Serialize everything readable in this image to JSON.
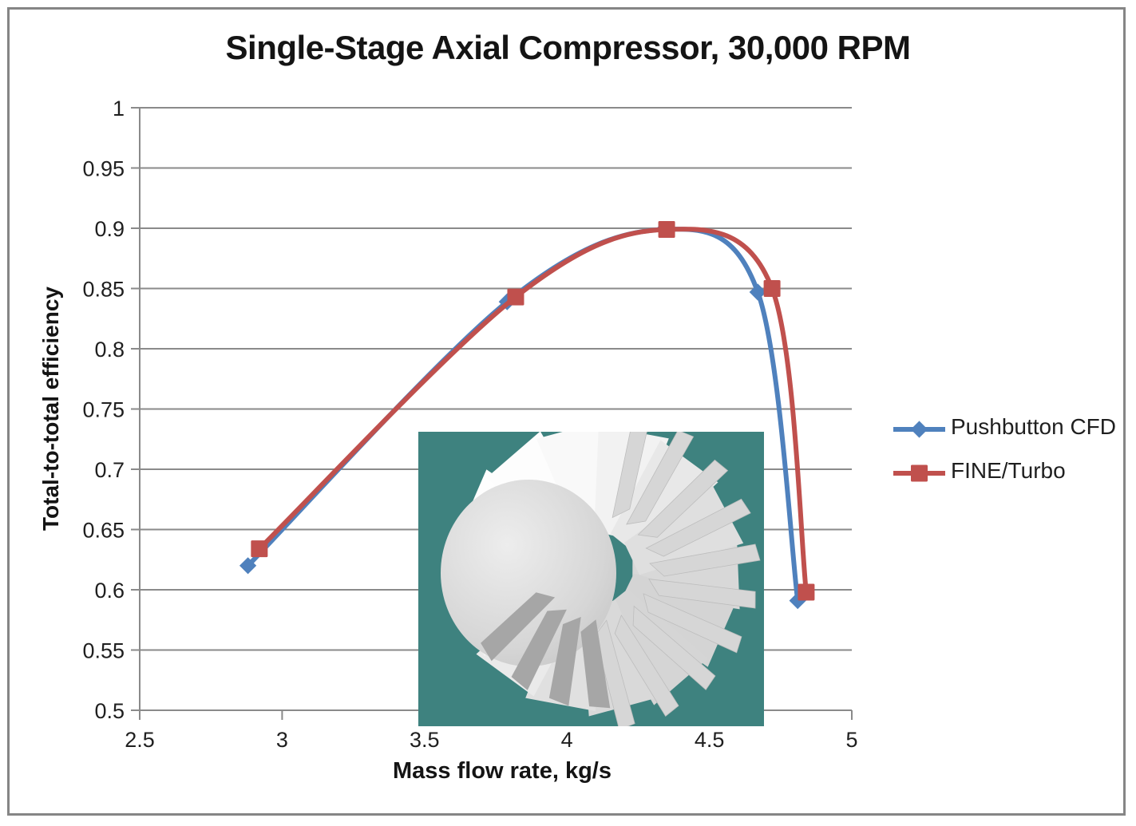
{
  "chart_data": {
    "type": "line",
    "title": "Single-Stage Axial Compressor, 30,000 RPM",
    "xlabel": "Mass flow rate, kg/s",
    "ylabel": "Total-to-total efficiency",
    "xlim": [
      2.5,
      5
    ],
    "ylim": [
      0.5,
      1
    ],
    "x_ticks": {
      "values": [
        2.5,
        3,
        3.5,
        4,
        4.5,
        5
      ],
      "labels": [
        "2.5",
        "3",
        "3.5",
        "4",
        "4.5",
        "5"
      ]
    },
    "y_ticks": {
      "values": [
        1,
        0.95,
        0.9,
        0.85,
        0.8,
        0.75,
        0.7,
        0.65,
        0.6,
        0.55,
        0.5
      ],
      "labels": [
        "1",
        "0.95",
        "0.9",
        "0.85",
        "0.8",
        "0.75",
        "0.7",
        "0.65",
        "0.6",
        "0.55",
        "0.5"
      ]
    },
    "grid": "horizontal",
    "legend_position": "right",
    "series": [
      {
        "name": "Pushbutton CFD",
        "color": "#4F81BD",
        "marker": "diamond",
        "smooth": true,
        "points": [
          [
            2.88,
            0.62
          ],
          [
            3.79,
            0.839
          ],
          [
            4.34,
            0.899
          ],
          [
            4.67,
            0.847
          ],
          [
            4.81,
            0.591
          ]
        ]
      },
      {
        "name": "FINE/Turbo",
        "color": "#C0504D",
        "marker": "square",
        "smooth": true,
        "points": [
          [
            2.92,
            0.634
          ],
          [
            3.82,
            0.843
          ],
          [
            4.35,
            0.899
          ],
          [
            4.72,
            0.85
          ],
          [
            4.84,
            0.598
          ]
        ]
      }
    ]
  },
  "legend": {
    "items": [
      {
        "label": "Pushbutton CFD",
        "color": "#4F81BD",
        "marker": "diamond"
      },
      {
        "label": "FINE/Turbo",
        "color": "#C0504D",
        "marker": "square"
      }
    ]
  },
  "inset": {
    "description": "3D rendering of a single-stage axial compressor rotor",
    "background_color": "#3E827F"
  },
  "styles": {
    "grid_color": "#8A8A8A",
    "axis_color": "#8A8A8A",
    "border_color": "#858585",
    "text_color": "#1f1f1f"
  }
}
